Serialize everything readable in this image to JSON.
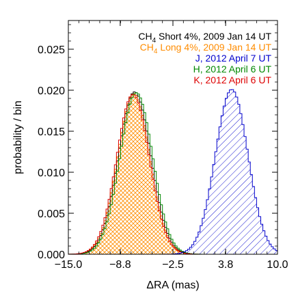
{
  "chart_data": {
    "type": "area",
    "xlabel": "ΔRA (mas)",
    "ylabel": "probability / bin",
    "xlim": [
      -15.0,
      10.0
    ],
    "ylim": [
      0.0,
      0.0285
    ],
    "x_ticks": [
      -15.0,
      -8.8,
      -2.5,
      3.8,
      10.0
    ],
    "x_tick_labels": [
      "−15.0",
      "−8.8",
      "−2.5",
      "3.8",
      "10.0"
    ],
    "y_ticks": [
      0.0,
      0.005,
      0.01,
      0.015,
      0.02,
      0.025
    ],
    "y_tick_labels": [
      "0.000",
      "0.005",
      "0.010",
      "0.015",
      "0.020",
      "0.025"
    ],
    "grid": false,
    "legend_position": "top-right",
    "series": [
      {
        "name": "CH₄ Short 4%, 2009 Jan 14 UT",
        "color": "#000000",
        "peak_x": -7.2,
        "peak_y": 0.0198,
        "sigma": 1.95,
        "fill": "crosshatch"
      },
      {
        "name": "CH₄ Long 4%, 2009 Jan 14 UT",
        "color": "#ff8c00",
        "peak_x": -7.3,
        "peak_y": 0.0196,
        "sigma": 1.95,
        "fill": "crosshatch"
      },
      {
        "name": "J, 2012 April 7 UT",
        "color": "#0000cc",
        "peak_x": 4.4,
        "peak_y": 0.0201,
        "sigma": 1.95,
        "fill": "diagonal"
      },
      {
        "name": "H, 2012 April 6 UT",
        "color": "#008800",
        "peak_x": -7.0,
        "peak_y": 0.0197,
        "sigma": 1.95,
        "fill": "crosshatch"
      },
      {
        "name": "K, 2012 April 6 UT",
        "color": "#dd0000",
        "peak_x": -7.4,
        "peak_y": 0.0195,
        "sigma": 1.95,
        "fill": "crosshatch"
      }
    ],
    "legend": [
      {
        "main": "CH",
        "sub": "4",
        "rest": " Short 4%, 2009 Jan 14 UT",
        "color": "#000000"
      },
      {
        "main": "CH",
        "sub": "4",
        "rest": " Long 4%, 2009 Jan 14 UT",
        "color": "#ff8c00"
      },
      {
        "main": "",
        "sub": "",
        "rest": "J, 2012 April 7 UT",
        "color": "#0000cc"
      },
      {
        "main": "",
        "sub": "",
        "rest": "H, 2012 April 6 UT",
        "color": "#008800"
      },
      {
        "main": "",
        "sub": "",
        "rest": "K, 2012 April 6 UT",
        "color": "#dd0000"
      }
    ]
  }
}
